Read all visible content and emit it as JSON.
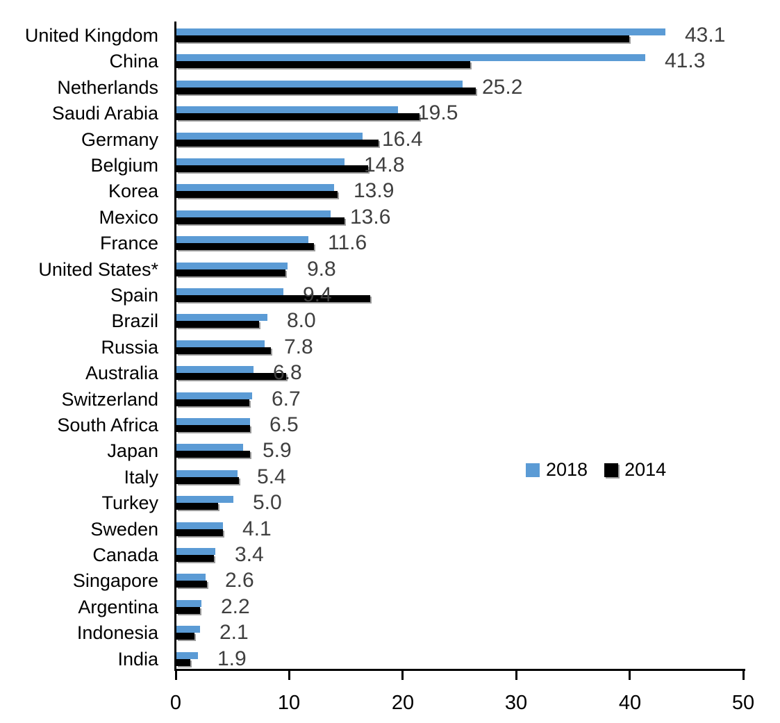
{
  "chart_data": {
    "type": "bar",
    "orientation": "horizontal",
    "title": "",
    "xlabel": "",
    "ylabel": "",
    "xlim": [
      0,
      50
    ],
    "x_ticks": [
      "0",
      "10",
      "20",
      "30",
      "40",
      "50"
    ],
    "grid": false,
    "legend_position": "middle-right",
    "categories": [
      "United Kingdom",
      "China",
      "Netherlands",
      "Saudi Arabia",
      "Germany",
      "Belgium",
      "Korea",
      "Mexico",
      "France",
      "United States*",
      "Spain",
      "Brazil",
      "Russia",
      "Australia",
      "Switzerland",
      "South Africa",
      "Japan",
      "Italy",
      "Turkey",
      "Sweden",
      "Canada",
      "Singapore",
      "Argentina",
      "Indonesia",
      "India"
    ],
    "series": [
      {
        "name": "2018",
        "color": "#5B9BD5",
        "values": [
          43.1,
          41.3,
          25.2,
          19.5,
          16.4,
          14.8,
          13.9,
          13.6,
          11.6,
          9.8,
          9.4,
          8.0,
          7.8,
          6.8,
          6.7,
          6.5,
          5.9,
          5.4,
          5.0,
          4.1,
          3.4,
          2.6,
          2.2,
          2.1,
          1.9
        ]
      },
      {
        "name": "2014",
        "color": "#000000",
        "values": [
          39.9,
          25.9,
          26.4,
          21.4,
          17.8,
          16.9,
          14.2,
          14.8,
          12.1,
          9.6,
          17.1,
          7.3,
          8.3,
          9.7,
          6.4,
          6.5,
          6.5,
          5.5,
          3.7,
          4.1,
          3.3,
          2.7,
          2.1,
          1.6,
          1.2
        ]
      }
    ],
    "data_labels": [
      "43.1",
      "41.3",
      "25.2",
      "19.5",
      "16.4",
      "14.8",
      "13.9",
      "13.6",
      "11.6",
      "9.8",
      "9.4",
      "8.0",
      "7.8",
      "6.8",
      "6.7",
      "6.5",
      "5.9",
      "5.4",
      "5.0",
      "4.1",
      "3.4",
      "2.6",
      "2.2",
      "2.1",
      "1.9"
    ],
    "data_labels_series": "2018"
  },
  "colors": {
    "bar_2018": "#5B9BD5",
    "bar_2014": "#000000",
    "value_label": "#3F3F3F",
    "axis": "#000000",
    "shadow": "#9C9C9C",
    "background": "#FFFFFF"
  }
}
